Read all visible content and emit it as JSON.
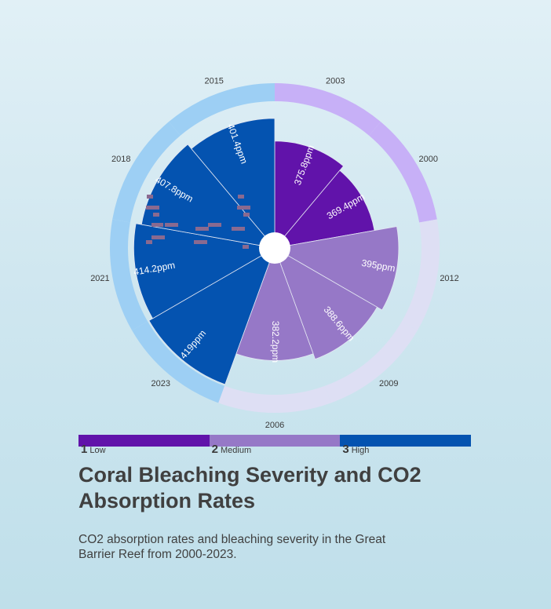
{
  "chart_data": {
    "type": "polar-bar",
    "title": "Coral Bleaching Severity and CO2 Absorption Rates",
    "subtitle": "CO2 absorption rates and bleaching severity in the Great Barrier Reef from 2000-2023.",
    "unit": "ppm",
    "data": [
      {
        "year": "2003",
        "co2": 375.8,
        "value_label": "375.8ppm",
        "severity": 1
      },
      {
        "year": "2000",
        "co2": 369.4,
        "value_label": "369.4ppm",
        "severity": 1
      },
      {
        "year": "2012",
        "co2": 395,
        "value_label": "395ppm",
        "severity": 2
      },
      {
        "year": "2009",
        "co2": 388.6,
        "value_label": "388.6ppm",
        "severity": 2
      },
      {
        "year": "2006",
        "co2": 382.2,
        "value_label": "382.2ppm",
        "severity": 2
      },
      {
        "year": "2023",
        "co2": 419,
        "value_label": "419ppm",
        "severity": 3
      },
      {
        "year": "2021",
        "co2": 414.2,
        "value_label": "414.2ppm",
        "severity": 3
      },
      {
        "year": "2018",
        "co2": 407.8,
        "value_label": "407.8ppm",
        "severity": 3
      },
      {
        "year": "2015",
        "co2": 401.4,
        "value_label": "401.4ppm",
        "severity": 3
      }
    ],
    "severity_colors": {
      "1": "#6113aa",
      "2": "#9678c7",
      "3": "#0453b0"
    },
    "ring_colors": {
      "1": "#c7b0f7",
      "2": "#dedff4",
      "3": "#9dcff4"
    },
    "legend": [
      {
        "num": "1",
        "label": "Low",
        "color": "#6113aa"
      },
      {
        "num": "2",
        "label": "Medium",
        "color": "#9678c7"
      },
      {
        "num": "3",
        "label": "High",
        "color": "#0453b0"
      }
    ]
  }
}
